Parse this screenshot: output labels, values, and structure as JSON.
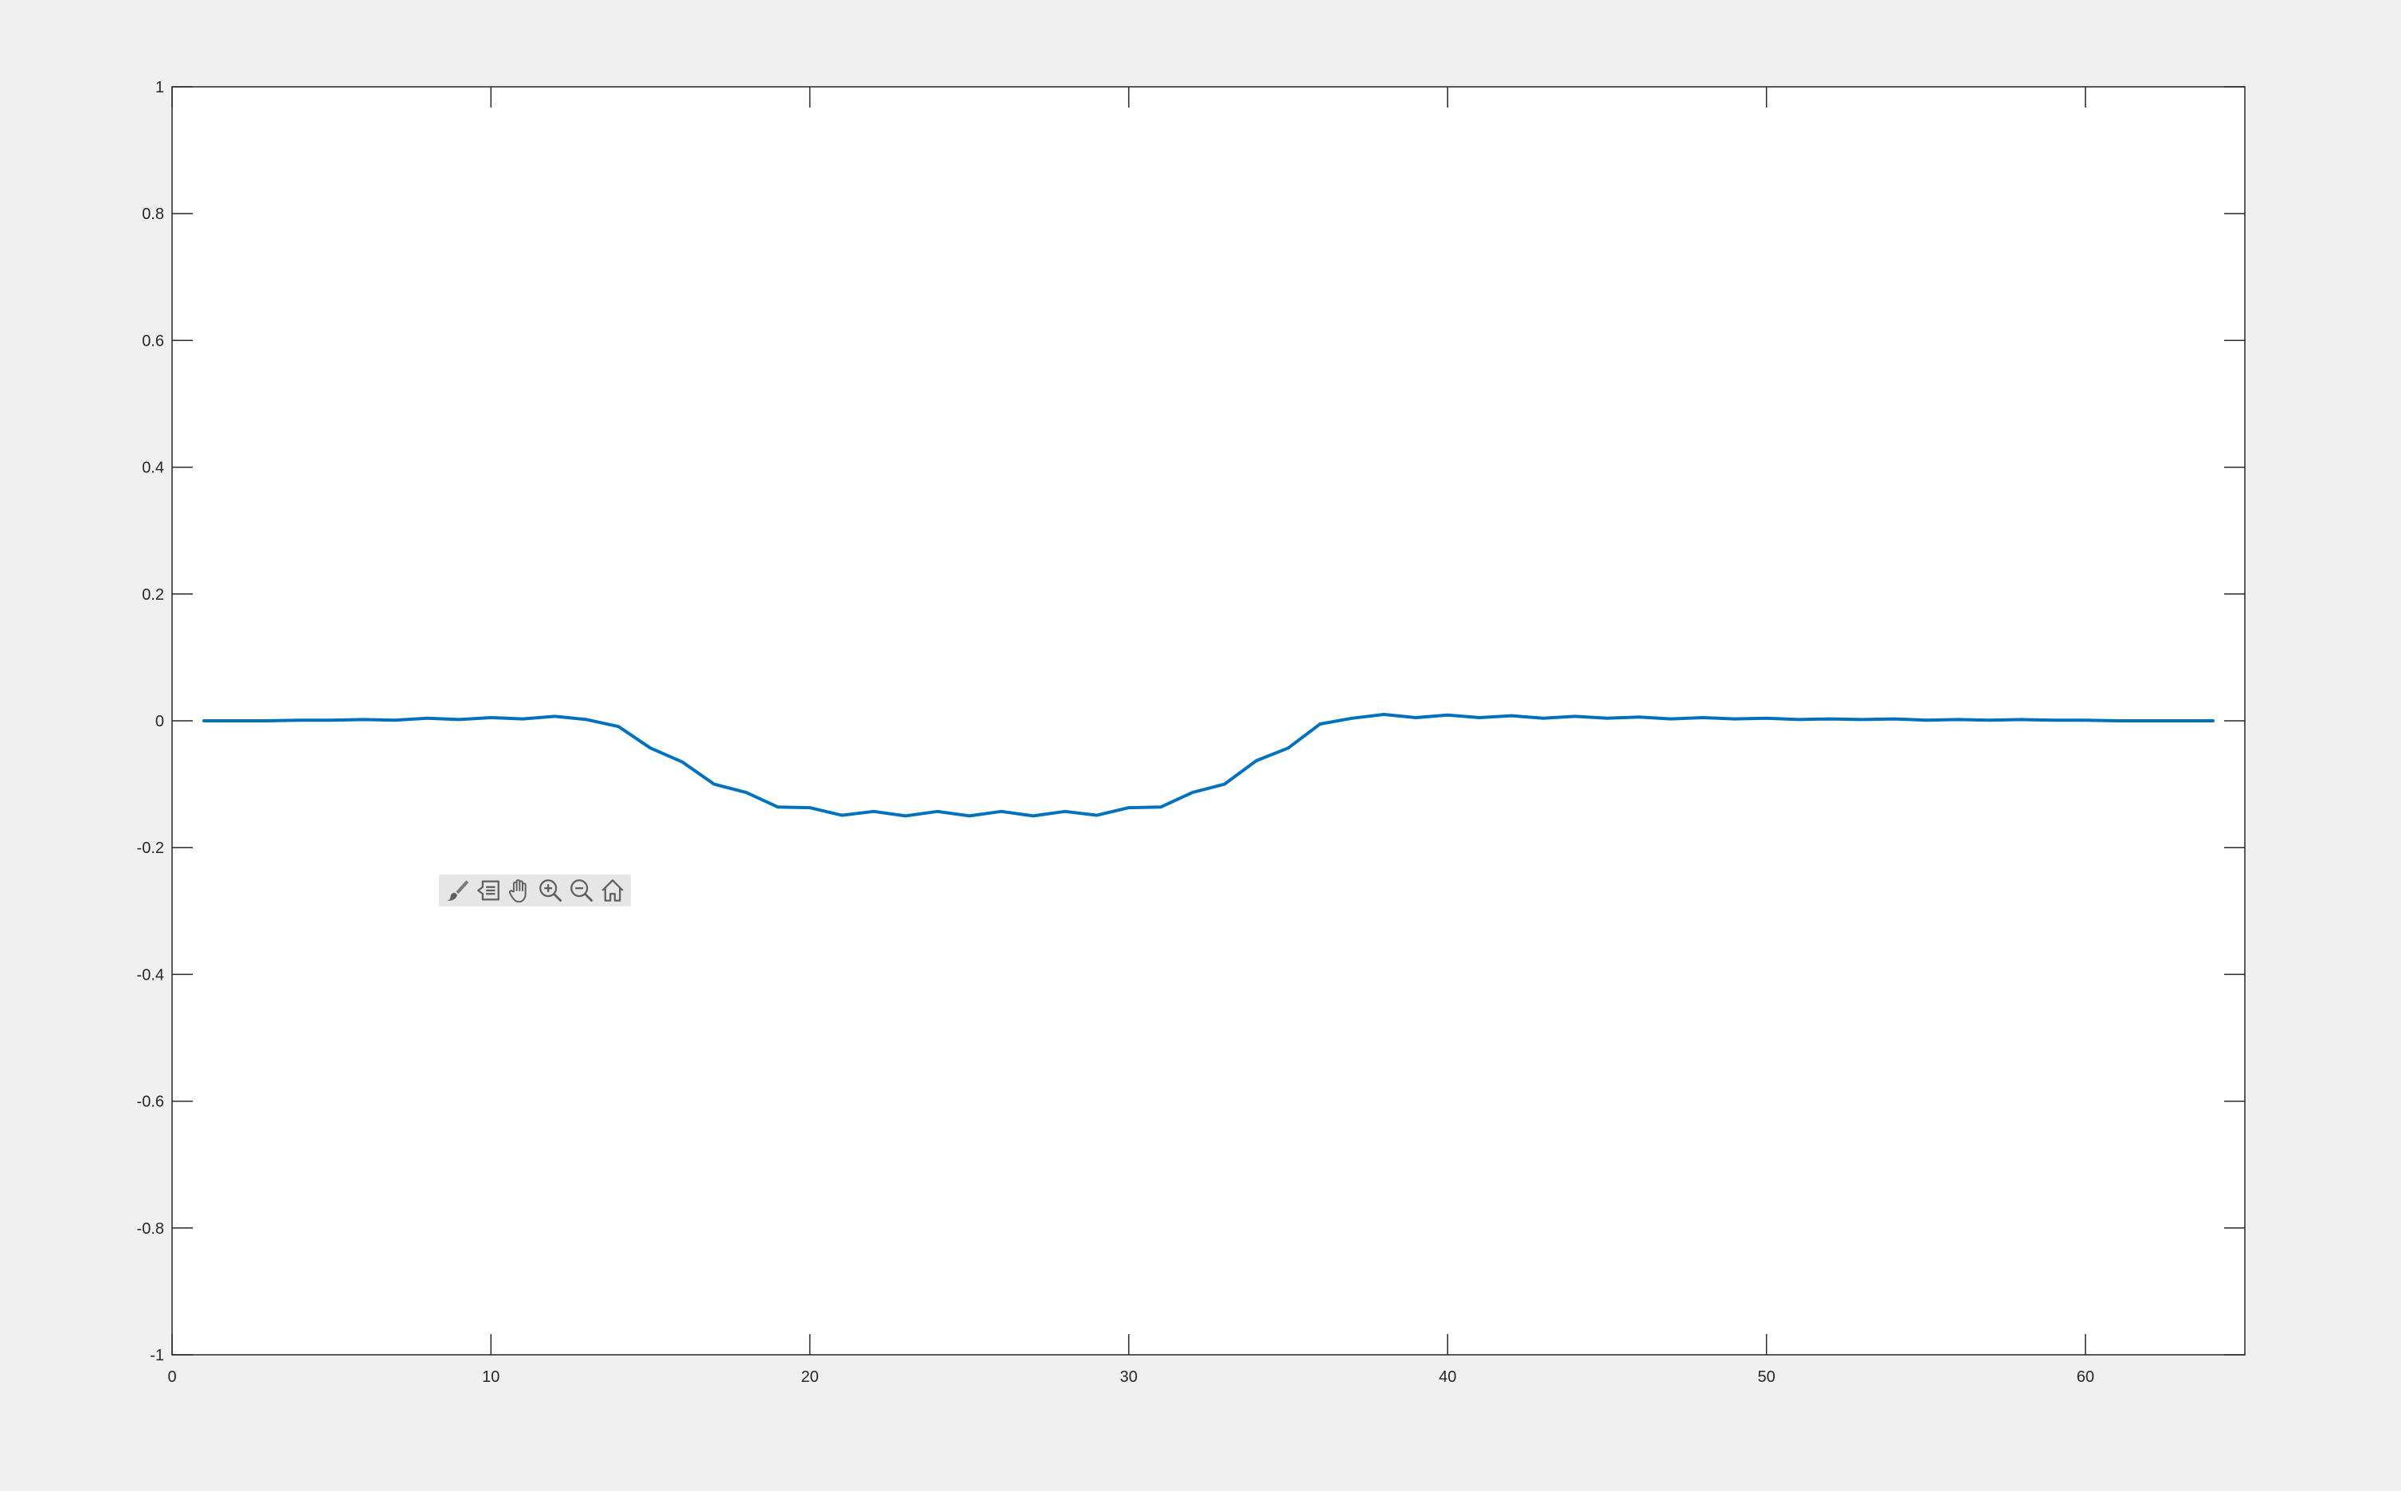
{
  "chart_data": {
    "type": "line",
    "title": "",
    "xlabel": "",
    "ylabel": "",
    "xlim": [
      0,
      65
    ],
    "ylim": [
      -1,
      1
    ],
    "xticks": [
      0,
      10,
      20,
      30,
      40,
      50,
      60
    ],
    "yticks": [
      -1,
      -0.8,
      -0.6,
      -0.4,
      -0.2,
      0,
      0.2,
      0.4,
      0.6,
      0.8,
      1
    ],
    "xtick_labels": [
      "0",
      "10",
      "20",
      "30",
      "40",
      "50",
      "60"
    ],
    "ytick_labels": [
      "-1",
      "-0.8",
      "-0.6",
      "-0.4",
      "-0.2",
      "0",
      "0.2",
      "0.4",
      "0.6",
      "0.8",
      "1"
    ],
    "grid": false,
    "box": true,
    "line_color": "#0072BD",
    "series": [
      {
        "x": [
          1,
          2,
          3,
          4,
          5,
          6,
          7,
          8,
          9,
          10,
          11,
          12,
          13,
          14,
          15,
          16,
          17,
          18,
          19,
          20,
          21,
          22,
          23,
          24,
          25,
          26,
          27,
          28,
          29,
          30,
          31,
          32,
          33,
          34,
          35,
          36,
          37,
          38,
          39,
          40,
          41,
          42,
          43,
          44,
          45,
          46,
          47,
          48,
          49,
          50,
          51,
          52,
          53,
          54,
          55,
          56,
          57,
          58,
          59,
          60,
          61,
          62,
          63,
          64
        ],
        "values": [
          0,
          0,
          0,
          0.001,
          0.001,
          0.002,
          0.001,
          0.004,
          0.002,
          0.005,
          0.003,
          0.007,
          0.002,
          -0.009,
          -0.043,
          -0.065,
          -0.1,
          -0.113,
          -0.136,
          -0.137,
          -0.149,
          -0.143,
          -0.15,
          -0.143,
          -0.15,
          -0.143,
          -0.15,
          -0.143,
          -0.149,
          -0.137,
          -0.136,
          -0.113,
          -0.1,
          -0.063,
          -0.043,
          -0.005,
          0.004,
          0.01,
          0.005,
          0.009,
          0.005,
          0.008,
          0.004,
          0.007,
          0.004,
          0.006,
          0.003,
          0.005,
          0.003,
          0.004,
          0.002,
          0.003,
          0.002,
          0.003,
          0.001,
          0.002,
          0.001,
          0.002,
          0.001,
          0.001,
          0,
          0,
          0,
          0
        ]
      }
    ]
  },
  "toolbar": {
    "items": [
      "brush-icon",
      "data-tips-icon",
      "pan-hand-icon",
      "zoom-in-icon",
      "zoom-out-icon",
      "home-icon"
    ]
  }
}
